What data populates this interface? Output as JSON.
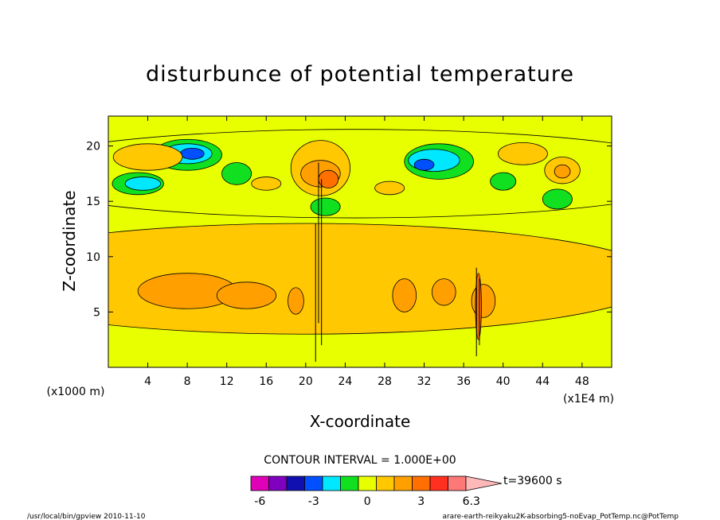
{
  "chart_data": {
    "type": "heatmap",
    "title": "disturbunce of potential temperature",
    "xlabel": "X-coordinate",
    "ylabel": "Z-coordinate",
    "x_unit": "(x1E4 m)",
    "y_unit": "(x1000 m)",
    "xlim": [
      0,
      51
    ],
    "ylim": [
      0,
      22.7
    ],
    "x_ticks": [
      4,
      8,
      12,
      16,
      20,
      24,
      28,
      32,
      36,
      40,
      44,
      48
    ],
    "y_ticks": [
      5,
      10,
      15,
      20
    ],
    "contour_interval": "CONTOUR INTERVAL = 1.000E+00",
    "time_label": "t=39600 s",
    "colorbar": {
      "colors": [
        "#e000b8",
        "#8000c0",
        "#1010b0",
        "#0050ff",
        "#00e8ff",
        "#10e020",
        "#e8ff00",
        "#ffc800",
        "#ffa000",
        "#ff7000",
        "#ff3020",
        "#ff7878",
        "#ffb8b8"
      ],
      "labels": [
        "-6",
        "-3",
        "0",
        "3",
        "6.3"
      ],
      "label_levels": [
        -6,
        -3,
        0,
        3,
        6.3
      ],
      "min": -6.5,
      "max": 6.5
    },
    "regions": [
      {
        "level": 0.5,
        "xc": 20,
        "yc": 8,
        "rx": 36,
        "ry": 5
      },
      {
        "level": 1.5,
        "xc": 8,
        "yc": 6.9,
        "rx": 5,
        "ry": 1.6
      },
      {
        "level": 1.5,
        "xc": 14,
        "yc": 6.5,
        "rx": 3,
        "ry": 1.2
      },
      {
        "level": 1.5,
        "xc": 30,
        "yc": 6.5,
        "rx": 1.2,
        "ry": 1.5
      },
      {
        "level": 1.5,
        "xc": 34,
        "yc": 6.8,
        "rx": 1.2,
        "ry": 1.2
      },
      {
        "level": 1.5,
        "xc": 38,
        "yc": 6,
        "rx": 1.2,
        "ry": 1.5
      },
      {
        "level": 1.5,
        "xc": 19,
        "yc": 6,
        "rx": 0.8,
        "ry": 1.2
      },
      {
        "level": -0.5,
        "xc": 25,
        "yc": 17.5,
        "rx": 36,
        "ry": 4
      },
      {
        "level": -1.5,
        "xc": 3,
        "yc": 16.6,
        "rx": 2.6,
        "ry": 1
      },
      {
        "level": -1.5,
        "xc": 8,
        "yc": 19.2,
        "rx": 3.5,
        "ry": 1.4
      },
      {
        "level": -1.5,
        "xc": 13,
        "yc": 17.5,
        "rx": 1.5,
        "ry": 1
      },
      {
        "level": -1.5,
        "xc": 33.5,
        "yc": 18.6,
        "rx": 3.5,
        "ry": 1.6
      },
      {
        "level": -1.5,
        "xc": 40,
        "yc": 16.8,
        "rx": 1.3,
        "ry": 0.8
      },
      {
        "level": -1.5,
        "xc": 45.5,
        "yc": 15.2,
        "rx": 1.5,
        "ry": 0.9
      },
      {
        "level": -1.5,
        "xc": 22,
        "yc": 14.5,
        "rx": 1.5,
        "ry": 0.8
      },
      {
        "level": -2.5,
        "xc": 8,
        "yc": 19.3,
        "rx": 2.5,
        "ry": 0.9
      },
      {
        "level": -2.5,
        "xc": 3.5,
        "yc": 16.6,
        "rx": 1.8,
        "ry": 0.6
      },
      {
        "level": -2.5,
        "xc": 33,
        "yc": 18.7,
        "rx": 2.6,
        "ry": 1.0
      },
      {
        "level": -3.5,
        "xc": 8.5,
        "yc": 19.3,
        "rx": 1.2,
        "ry": 0.5
      },
      {
        "level": -3.5,
        "xc": 32,
        "yc": 18.3,
        "rx": 1.0,
        "ry": 0.5
      },
      {
        "level": 0.5,
        "xc": 4,
        "yc": 19,
        "rx": 3.5,
        "ry": 1.2
      },
      {
        "level": 0.5,
        "xc": 42,
        "yc": 19.3,
        "rx": 2.5,
        "ry": 1
      },
      {
        "level": 0.5,
        "xc": 21.5,
        "yc": 18,
        "rx": 3,
        "ry": 2.5
      },
      {
        "level": 1.5,
        "xc": 21.5,
        "yc": 17.5,
        "rx": 2,
        "ry": 1.2
      },
      {
        "level": 2.5,
        "xc": 22.3,
        "yc": 17,
        "rx": 1,
        "ry": 0.8
      },
      {
        "level": 0.5,
        "xc": 46,
        "yc": 17.8,
        "rx": 1.8,
        "ry": 1.2
      },
      {
        "level": 1.5,
        "xc": 46,
        "yc": 17.7,
        "rx": 0.8,
        "ry": 0.6
      },
      {
        "level": 0.5,
        "xc": 16,
        "yc": 16.6,
        "rx": 1.5,
        "ry": 0.6
      },
      {
        "level": 0.5,
        "xc": 28.5,
        "yc": 16.2,
        "rx": 1.5,
        "ry": 0.6
      },
      {
        "level": 2.5,
        "xc": 37.5,
        "yc": 5.5,
        "rx": 0.3,
        "ry": 3
      }
    ],
    "lines": [
      {
        "x": 21,
        "y0": 0.5,
        "y1": 13
      },
      {
        "x": 21.3,
        "y0": 4,
        "y1": 18.5
      },
      {
        "x": 21.6,
        "y0": 2,
        "y1": 17
      },
      {
        "x": 37.3,
        "y0": 1,
        "y1": 9
      },
      {
        "x": 37.6,
        "y0": 2,
        "y1": 8
      }
    ]
  },
  "footer": {
    "left": "/usr/local/bin/gpview  2010-11-10",
    "right": "arare-earth-reikyaku2K-absorbing5-noEvap_PotTemp.nc@PotTemp"
  }
}
